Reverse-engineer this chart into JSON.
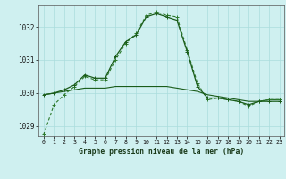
{
  "title": "Graphe pression niveau de la mer (hPa)",
  "background_color": "#cff0f0",
  "grid_color": "#aadddd",
  "line_color_dark": "#1a5c1a",
  "line_color_medium": "#2d7a2d",
  "ylim": [
    1028.7,
    1032.65
  ],
  "yticks": [
    1029,
    1030,
    1031,
    1032
  ],
  "hours": [
    0,
    1,
    2,
    3,
    4,
    5,
    6,
    7,
    8,
    9,
    10,
    11,
    12,
    13,
    14,
    15,
    16,
    17,
    18,
    19,
    20,
    21,
    22,
    23
  ],
  "series1": [
    1028.75,
    1029.65,
    1029.95,
    1030.2,
    1030.5,
    1030.4,
    1030.4,
    1031.0,
    1031.5,
    1031.8,
    1032.35,
    1032.45,
    1032.35,
    1032.3,
    1031.3,
    1030.3,
    1029.8,
    1029.85,
    1029.8,
    1029.75,
    1029.6,
    1029.75,
    1029.8,
    1029.8
  ],
  "series2": [
    1029.95,
    1030.0,
    1030.05,
    1030.1,
    1030.15,
    1030.15,
    1030.15,
    1030.2,
    1030.2,
    1030.2,
    1030.2,
    1030.2,
    1030.2,
    1030.15,
    1030.1,
    1030.05,
    1029.95,
    1029.9,
    1029.85,
    1029.8,
    1029.75,
    1029.75,
    1029.8,
    1029.8
  ],
  "series3": [
    1029.95,
    1030.0,
    1030.1,
    1030.25,
    1030.55,
    1030.45,
    1030.45,
    1031.1,
    1031.55,
    1031.75,
    1032.3,
    1032.4,
    1032.3,
    1032.2,
    1031.25,
    1030.2,
    1029.85,
    1029.85,
    1029.8,
    1029.75,
    1029.65,
    1029.75,
    1029.75,
    1029.75
  ]
}
